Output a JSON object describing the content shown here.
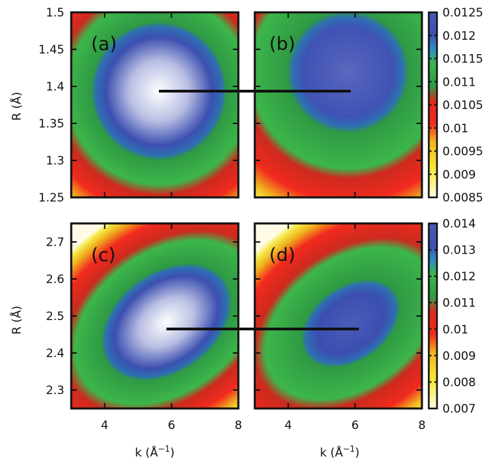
{
  "chart_data": [
    {
      "type": "heatmap",
      "panel_label": "(a)",
      "xlim": [
        3,
        8
      ],
      "ylim": [
        1.25,
        1.5
      ],
      "yticks": [
        "1.25",
        "1.3",
        "1.35",
        "1.4",
        "1.45",
        "1.5"
      ],
      "ylabel": "R (Å)",
      "peak": {
        "x": 5.7,
        "y": 1.395,
        "value": 0.0125
      },
      "color_range": [
        0.0085,
        0.0125
      ]
    },
    {
      "type": "heatmap",
      "panel_label": "(b)",
      "xlim": [
        3,
        8
      ],
      "ylim": [
        1.25,
        1.5
      ],
      "peak": {
        "x": 6.0,
        "y": 1.41,
        "value": 0.0121
      },
      "color_range": [
        0.0085,
        0.0125
      ]
    },
    {
      "type": "heatmap",
      "panel_label": "(c)",
      "xlim": [
        3,
        8
      ],
      "ylim": [
        2.25,
        2.75
      ],
      "yticks": [
        "2.3",
        "2.4",
        "2.5",
        "2.6",
        "2.7"
      ],
      "xticks": [
        "4",
        "6",
        "8"
      ],
      "ylabel": "R (Å)",
      "xlabel": "k (Å",
      "xlabel_sup": "−1",
      "xlabel_end": ")",
      "peak": {
        "x": 5.7,
        "y": 2.465,
        "value": 0.014
      },
      "color_range": [
        0.007,
        0.014
      ]
    },
    {
      "type": "heatmap",
      "panel_label": "(d)",
      "xlim": [
        3,
        8
      ],
      "ylim": [
        2.25,
        2.75
      ],
      "xticks": [
        "4",
        "6",
        "8"
      ],
      "xlabel": "k (Å",
      "xlabel_sup": "−1",
      "xlabel_end": ")",
      "peak": {
        "x": 6.0,
        "y": 2.47,
        "value": 0.0135
      },
      "color_range": [
        0.007,
        0.014
      ]
    }
  ],
  "colorbars": [
    {
      "ticks": [
        "0.0125",
        "0.012",
        "0.0115",
        "0.011",
        "0.0105",
        "0.01",
        "0.0095",
        "0.009",
        "0.0085"
      ],
      "range": [
        0.0085,
        0.0125
      ]
    },
    {
      "ticks": [
        "0.014",
        "0.013",
        "0.012",
        "0.011",
        "0.01",
        "0.009",
        "0.008",
        "0.007"
      ],
      "range": [
        0.007,
        0.014
      ]
    }
  ],
  "connectors": [
    {
      "y": 1.395,
      "from_x": 5.7,
      "to_x": 6.0
    },
    {
      "y": 2.467,
      "from_x": 5.7,
      "to_x": 6.0
    }
  ],
  "colormap": [
    "#fffbe6",
    "#f5e71e",
    "#f5a81e",
    "#ff2a1e",
    "#e61e1e",
    "#32aa32",
    "#44bb44",
    "#3a9bd0",
    "#3c50b4",
    "#4a5fb8",
    "#ffffff"
  ]
}
